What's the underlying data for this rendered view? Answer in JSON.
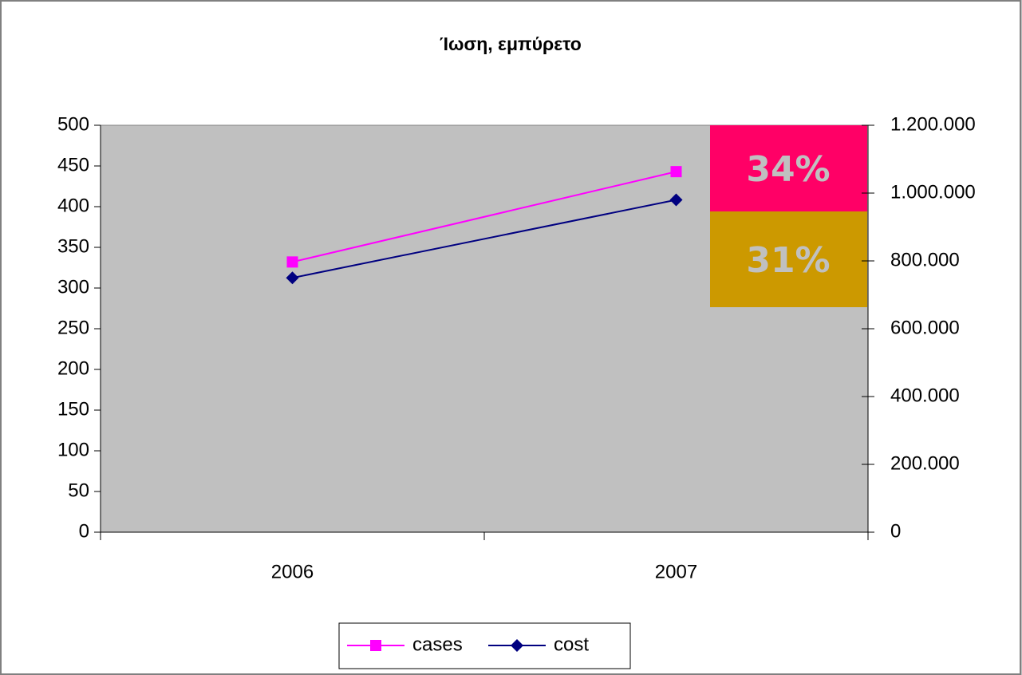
{
  "chart_data": {
    "type": "line",
    "title": "Ίωση, εμπύρετο",
    "categories": [
      "2006",
      "2007"
    ],
    "series": [
      {
        "name": "cases",
        "color": "#ff00ff",
        "marker": "square",
        "values": [
          332,
          443
        ]
      },
      {
        "name": "cost",
        "color": "#000080",
        "marker": "diamond",
        "axis": "y2",
        "values": [
          750000,
          980000
        ]
      }
    ],
    "ylim": [
      0,
      500
    ],
    "yticks": [
      0,
      50,
      100,
      150,
      200,
      250,
      300,
      350,
      400,
      450,
      500
    ],
    "y2lim": [
      0,
      1200000
    ],
    "y2ticks": [
      0,
      {
        "value": 200000,
        "label": "200.000"
      },
      {
        "value": 400000,
        "label": "400.000"
      },
      {
        "value": 600000,
        "label": "600.000"
      },
      {
        "value": 800000,
        "label": "800.000"
      },
      {
        "value": 1000000,
        "label": "1.000.000"
      },
      {
        "value": 1200000,
        "label": "1.200.000"
      }
    ],
    "plot_background": "#c0c0c0",
    "legend": "bottom",
    "annotations": [
      {
        "text": "34%",
        "color": "#ff0066"
      },
      {
        "text": "31%",
        "color": "#cc9900"
      }
    ]
  }
}
